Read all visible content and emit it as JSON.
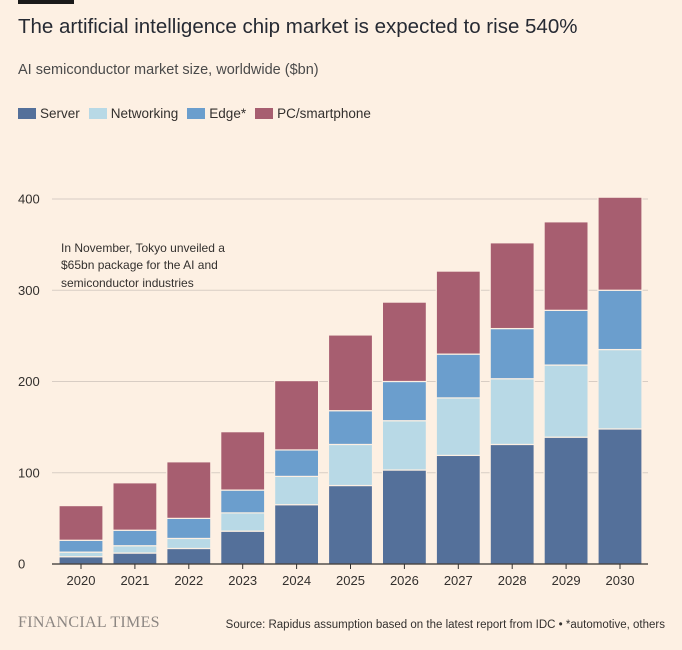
{
  "header": {
    "title": "The artificial intelligence chip market is expected to rise 540%",
    "subtitle": "AI semiconductor market size, worldwide ($bn)"
  },
  "annotation": "In November, Tokyo unveiled a $65bn package for the AI and semiconductor industries",
  "footer": {
    "brand": "FINANCIAL TIMES",
    "source": "Source: Rapidus assumption based on the latest report from IDC • *automotive, others"
  },
  "colors": {
    "background": "#fdf0e3",
    "gridline": "#d8cdc4",
    "axis": "#33302e"
  },
  "chart_data": {
    "type": "bar",
    "stacked": true,
    "categories": [
      "2020",
      "2021",
      "2022",
      "2023",
      "2024",
      "2025",
      "2026",
      "2027",
      "2028",
      "2029",
      "2030"
    ],
    "series": [
      {
        "name": "Server",
        "color": "#54709a",
        "values": [
          8,
          12,
          17,
          36,
          65,
          86,
          103,
          119,
          131,
          139,
          148
        ]
      },
      {
        "name": "Networking",
        "color": "#b8d9e6",
        "values": [
          5,
          8,
          11,
          20,
          31,
          45,
          54,
          63,
          72,
          79,
          87
        ]
      },
      {
        "name": "Edge*",
        "color": "#6b9ecd",
        "values": [
          13,
          17,
          22,
          25,
          29,
          37,
          43,
          48,
          55,
          60,
          65
        ]
      },
      {
        "name": "PC/smartphone",
        "color": "#a75e70",
        "values": [
          38,
          52,
          62,
          64,
          76,
          83,
          87,
          91,
          94,
          97,
          102
        ]
      }
    ],
    "ylim": [
      0,
      400
    ],
    "yticks": [
      0,
      100,
      200,
      300,
      400
    ],
    "grid": true,
    "legend": "top-left"
  }
}
